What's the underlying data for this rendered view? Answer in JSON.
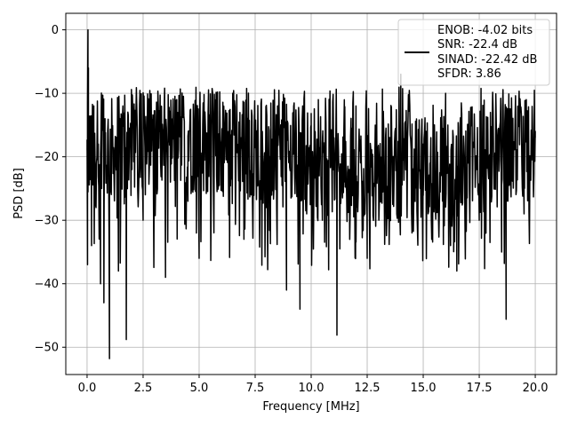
{
  "chart_data": {
    "type": "line",
    "title": "",
    "xlabel": "Frequency [MHz]",
    "ylabel": "PSD [dB]",
    "xlim": [
      -0.95,
      20.95
    ],
    "ylim": [
      -54.3,
      2.6
    ],
    "x_ticks": [
      0.0,
      2.5,
      5.0,
      7.5,
      10.0,
      12.5,
      15.0,
      17.5,
      20.0
    ],
    "x_tick_labels": [
      "0.0",
      "2.5",
      "5.0",
      "7.5",
      "10.0",
      "12.5",
      "15.0",
      "17.5",
      "20.0"
    ],
    "y_ticks": [
      0,
      -10,
      -20,
      -30,
      -40,
      -50
    ],
    "y_tick_labels": [
      "0",
      "−10",
      "−20",
      "−30",
      "−40",
      "−50"
    ],
    "grid": true,
    "legend_position": "top-right",
    "line_color": "#000000",
    "series": [
      {
        "name": "",
        "points_approx": 1000,
        "x": [
          0.0,
          0.02,
          0.04,
          0.06,
          0.1,
          0.15,
          0.2,
          0.3,
          0.4,
          0.5,
          0.6,
          0.65,
          0.75,
          0.8,
          1.0,
          1.2,
          1.4,
          1.6,
          1.75,
          2.0,
          2.5,
          3.0,
          3.5,
          4.0,
          4.5,
          5.0,
          5.5,
          6.0,
          6.5,
          7.0,
          7.5,
          8.0,
          8.5,
          8.9,
          9.3,
          9.5,
          10.0,
          10.5,
          11.0,
          11.15,
          11.5,
          12.0,
          12.5,
          13.0,
          13.5,
          14.0,
          14.5,
          15.0,
          15.5,
          16.0,
          16.5,
          17.0,
          17.5,
          18.0,
          18.5,
          18.7,
          19.0,
          19.5,
          20.0
        ],
        "y": [
          -19,
          -37,
          0,
          -6,
          -15,
          -22,
          -34,
          -12,
          -28,
          -18,
          -40,
          -25,
          -43,
          -14,
          -51.8,
          -20,
          -38,
          -12,
          -48.8,
          -22,
          -30,
          -16,
          -39,
          -11,
          -27,
          -36,
          -14,
          -25,
          -10,
          -33,
          -18,
          -28,
          -12,
          -41,
          -22,
          -44,
          -15,
          -30,
          -19,
          -48.1,
          -24,
          -12,
          -36,
          -20,
          -28,
          -7,
          -32,
          -18,
          -26,
          -10,
          -38,
          -21,
          -30,
          -13,
          -35,
          -45.6,
          -22,
          -29,
          -16
        ]
      }
    ]
  },
  "legend": {
    "lines": [
      "ENOB: -4.02 bits",
      "SNR: -22.4 dB",
      "SINAD: -22.42 dB",
      "SFDR: 3.86"
    ]
  }
}
